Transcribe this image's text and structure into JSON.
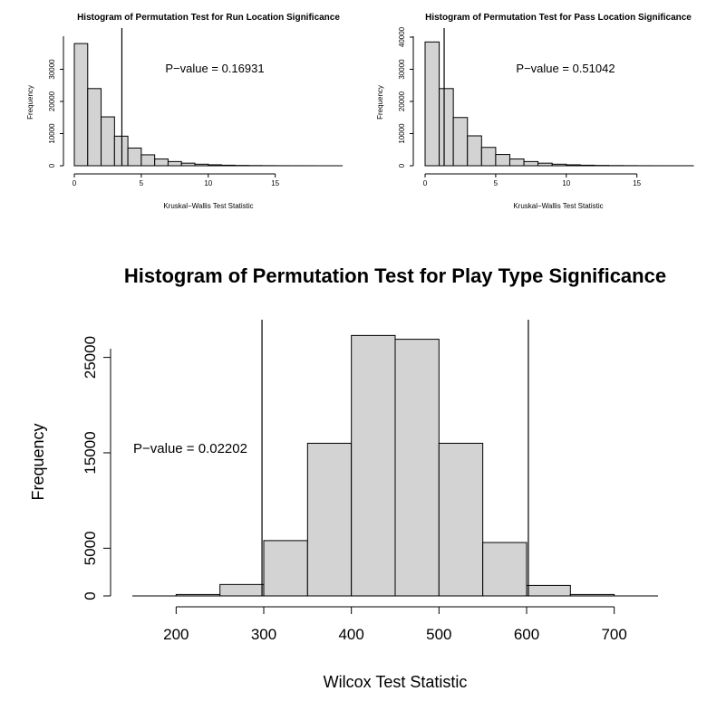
{
  "chart_data": [
    {
      "id": "run",
      "type": "histogram",
      "title": "Histogram of Permutation Test for Run Location Significance",
      "xlabel": "Kruskal−Wallis Test Statistic",
      "ylabel": "Frequency",
      "annotation": "P−value = 0.16931",
      "bin_width": 1,
      "x_start": 0,
      "values": [
        38000,
        24000,
        15200,
        9200,
        5500,
        3400,
        2100,
        1300,
        800,
        480,
        290,
        170,
        100,
        60,
        35,
        20,
        12,
        8
      ],
      "observed_stat": 3.55,
      "xlim": [
        0,
        18
      ],
      "ylim": [
        0,
        40000
      ],
      "xticks": [
        0,
        5,
        10,
        15
      ],
      "yticks": [
        0,
        10000,
        20000,
        30000
      ]
    },
    {
      "id": "pass",
      "type": "histogram",
      "title": "Histogram of Permutation Test for Pass Location Significance",
      "xlabel": "Kruskal−Wallis Test Statistic",
      "ylabel": "Frequency",
      "annotation": "P−value = 0.51042",
      "bin_width": 1,
      "x_start": 0,
      "values": [
        38500,
        24000,
        15000,
        9300,
        5700,
        3500,
        2100,
        1300,
        800,
        480,
        290,
        170,
        100,
        60,
        35,
        20,
        12,
        8,
        5
      ],
      "observed_stat": 1.35,
      "xlim": [
        0,
        19
      ],
      "ylim": [
        0,
        40000
      ],
      "xticks": [
        0,
        5,
        10,
        15
      ],
      "yticks": [
        0,
        10000,
        20000,
        30000,
        40000
      ]
    },
    {
      "id": "play",
      "type": "histogram",
      "title": "Histogram of Permutation Test for Play Type Significance",
      "xlabel": "Wilcox Test Statistic",
      "ylabel": "Frequency",
      "annotation": "P−value = 0.02202",
      "bin_width": 50,
      "x_start": 200,
      "values": [
        150,
        1200,
        5800,
        16000,
        27300,
        26900,
        16000,
        5600,
        1100,
        150
      ],
      "observed_stat_low": 298,
      "observed_stat_high": 602,
      "xlim": [
        150,
        750
      ],
      "ylim": [
        0,
        28000
      ],
      "xticks": [
        200,
        300,
        400,
        500,
        600,
        700
      ],
      "yticks": [
        0,
        5000,
        15000,
        25000
      ]
    }
  ]
}
